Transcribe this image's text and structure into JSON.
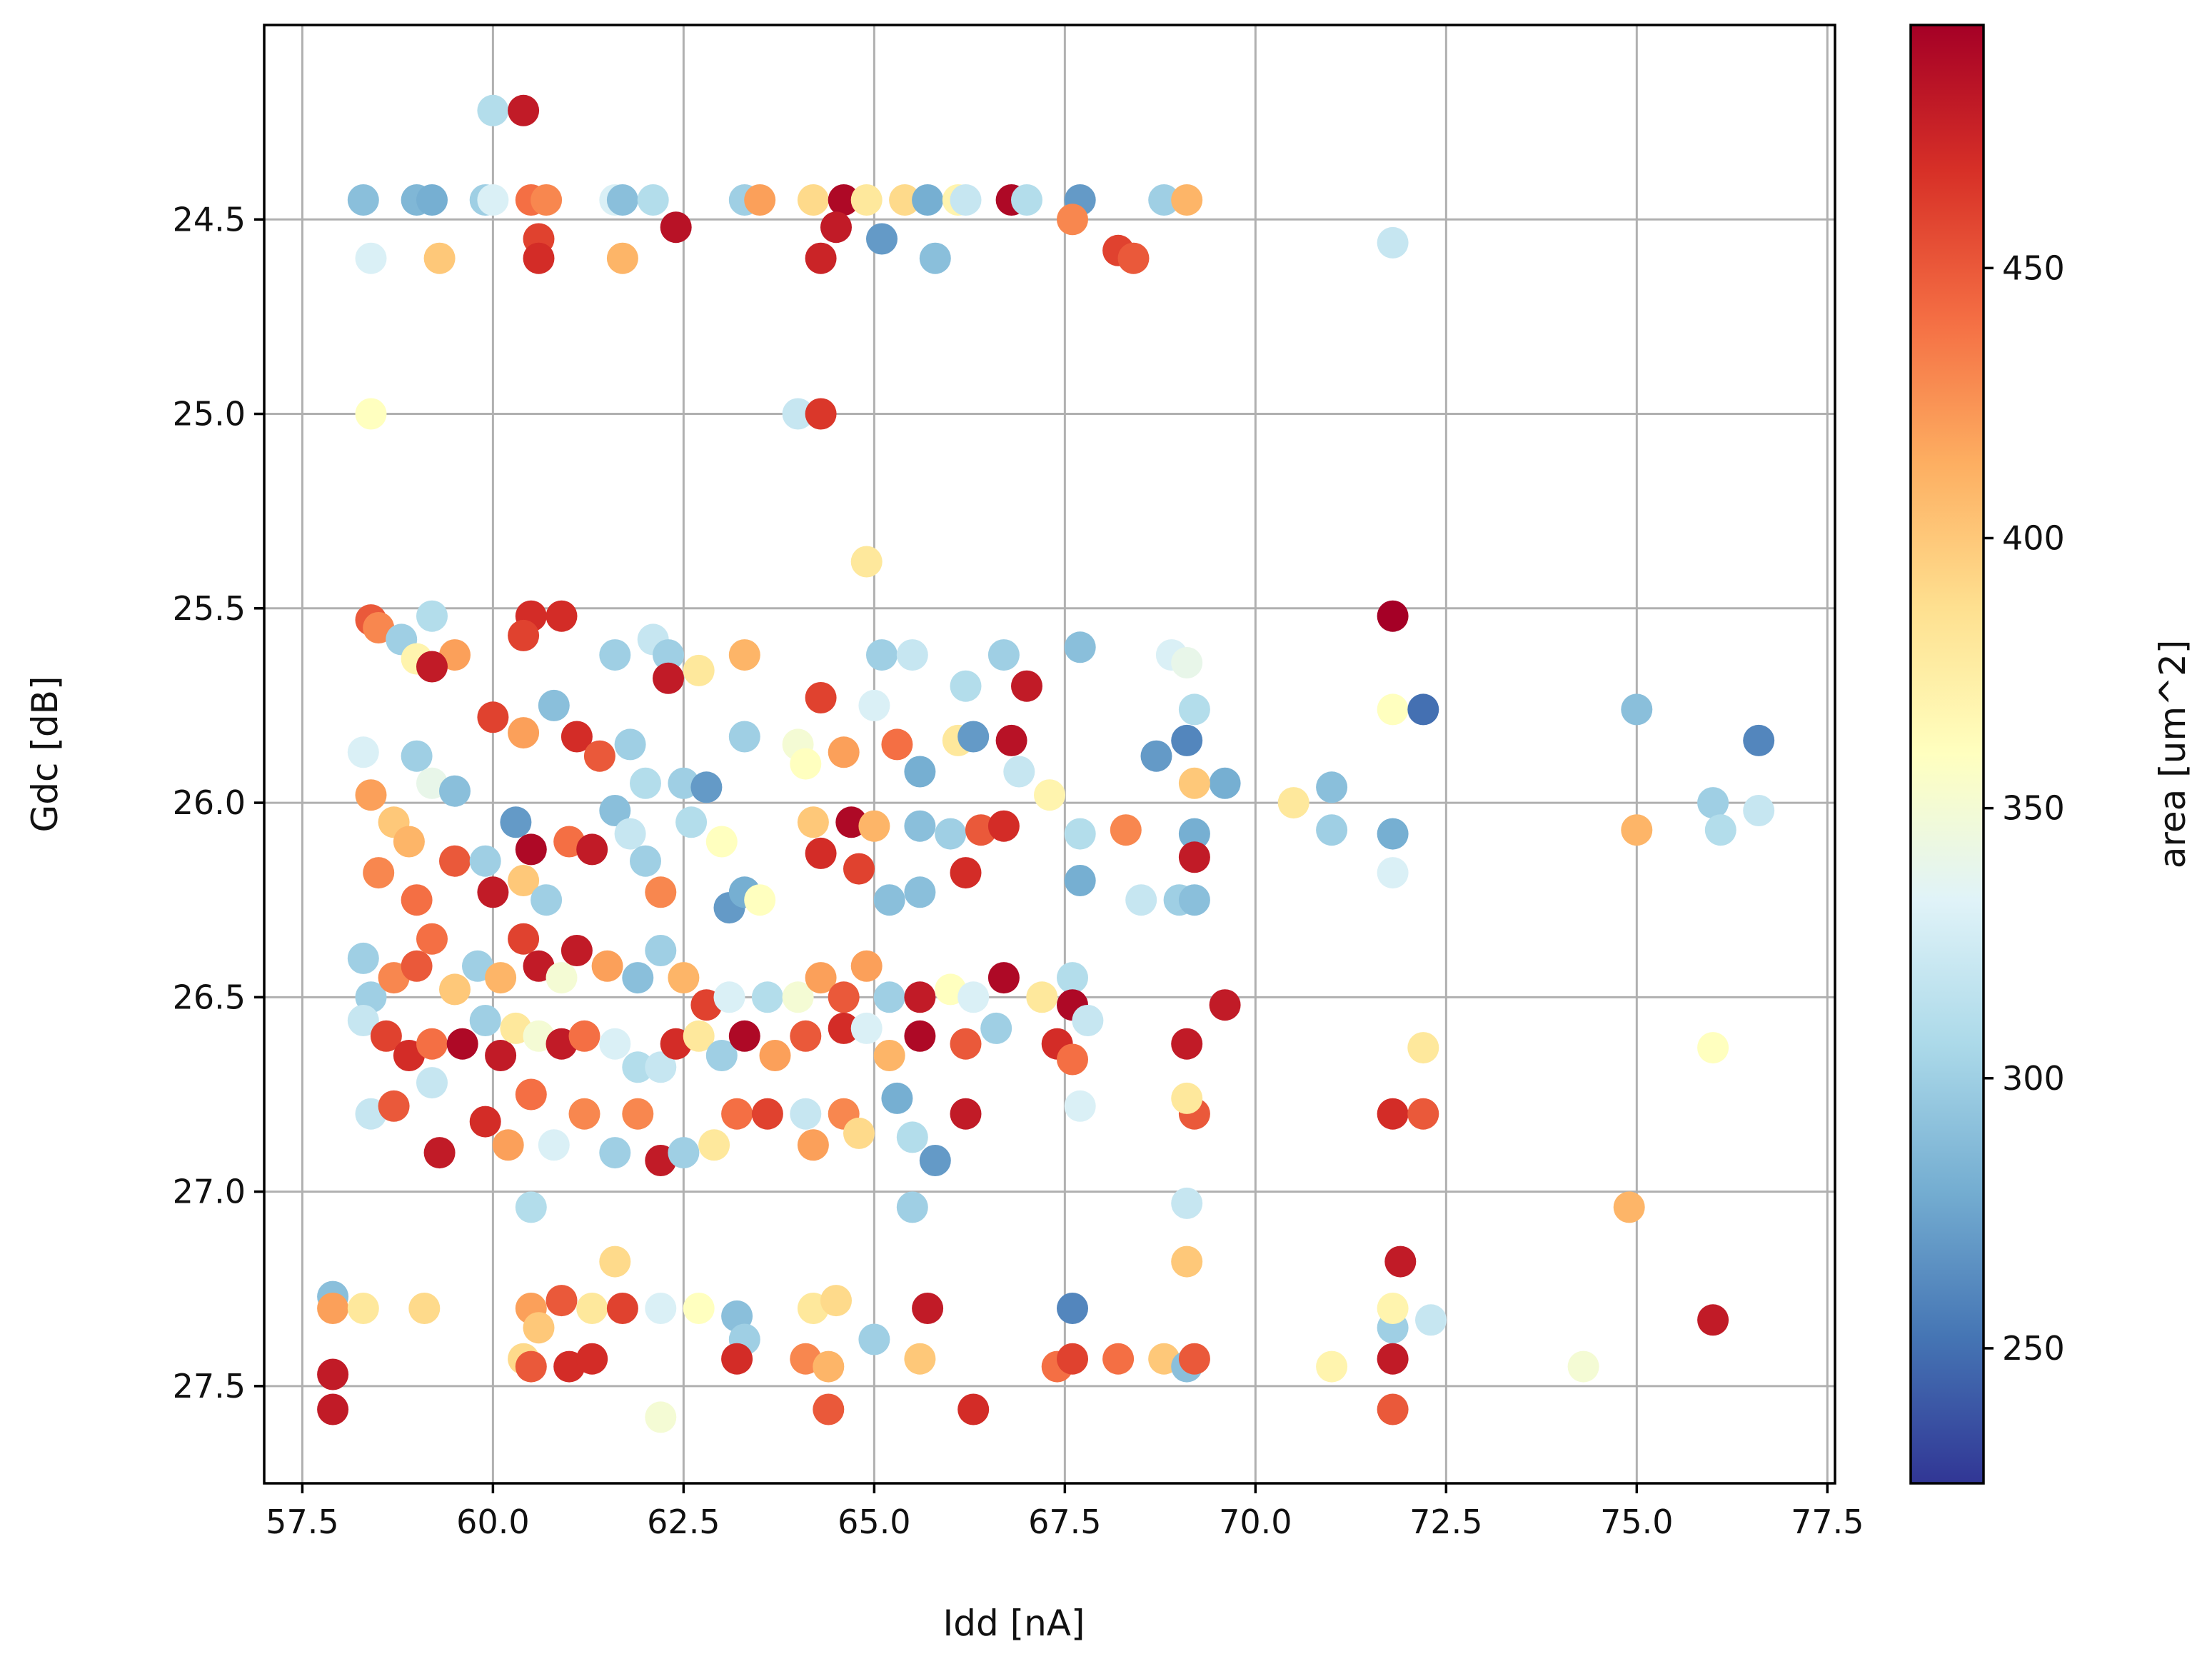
{
  "chart_data": {
    "type": "scatter",
    "title": "",
    "xlabel": "Idd [nA]",
    "ylabel": "Gdc [dB]",
    "colorbar_label": "area [um^2]",
    "colormap": "RdYlBu_r",
    "xlim": [
      57.0,
      77.6
    ],
    "ylim": [
      27.75,
      24.0
    ],
    "y_inverted": true,
    "grid": true,
    "x_ticks": [
      "57.5",
      "60.0",
      "62.5",
      "65.0",
      "67.5",
      "70.0",
      "72.5",
      "75.0",
      "77.5"
    ],
    "y_ticks": [
      "24.5",
      "25.0",
      "25.5",
      "26.0",
      "26.5",
      "27.0",
      "27.5"
    ],
    "colorbar_range": [
      225,
      495
    ],
    "colorbar_ticks": [
      "250",
      "300",
      "350",
      "400",
      "450"
    ],
    "colors": {
      "stops": [
        "#313695",
        "#4575b4",
        "#74add1",
        "#abd9e9",
        "#e0f3f8",
        "#ffffbf",
        "#fee090",
        "#fdae61",
        "#f46d43",
        "#d73027",
        "#a50026"
      ]
    },
    "points": [
      [
        60.0,
        24.22,
        310
      ],
      [
        60.4,
        24.22,
        480
      ],
      [
        58.3,
        24.45,
        290
      ],
      [
        59.0,
        24.45,
        285
      ],
      [
        59.2,
        24.45,
        280
      ],
      [
        59.9,
        24.45,
        300
      ],
      [
        60.0,
        24.45,
        330
      ],
      [
        60.5,
        24.45,
        440
      ],
      [
        60.7,
        24.45,
        430
      ],
      [
        61.6,
        24.45,
        330
      ],
      [
        61.7,
        24.45,
        290
      ],
      [
        62.1,
        24.45,
        310
      ],
      [
        62.4,
        24.52,
        485
      ],
      [
        63.3,
        24.45,
        300
      ],
      [
        63.5,
        24.45,
        420
      ],
      [
        64.2,
        24.45,
        390
      ],
      [
        64.6,
        24.45,
        490
      ],
      [
        64.5,
        24.52,
        480
      ],
      [
        64.9,
        24.45,
        380
      ],
      [
        65.4,
        24.45,
        390
      ],
      [
        65.7,
        24.45,
        280
      ],
      [
        66.1,
        24.45,
        370
      ],
      [
        66.2,
        24.45,
        320
      ],
      [
        66.8,
        24.45,
        490
      ],
      [
        67.0,
        24.45,
        310
      ],
      [
        67.7,
        24.45,
        270
      ],
      [
        67.6,
        24.5,
        430
      ],
      [
        68.8,
        24.45,
        300
      ],
      [
        69.1,
        24.45,
        410
      ],
      [
        58.4,
        24.6,
        330
      ],
      [
        59.3,
        24.6,
        400
      ],
      [
        60.6,
        24.55,
        460
      ],
      [
        60.6,
        24.6,
        470
      ],
      [
        61.7,
        24.6,
        410
      ],
      [
        64.3,
        24.6,
        475
      ],
      [
        65.1,
        24.55,
        270
      ],
      [
        65.8,
        24.6,
        290
      ],
      [
        68.2,
        24.58,
        460
      ],
      [
        68.4,
        24.6,
        450
      ],
      [
        71.8,
        24.56,
        320
      ],
      [
        58.4,
        25.0,
        360
      ],
      [
        64.0,
        25.0,
        320
      ],
      [
        64.3,
        25.0,
        465
      ],
      [
        64.9,
        25.38,
        380
      ],
      [
        58.4,
        25.53,
        450
      ],
      [
        58.5,
        25.55,
        430
      ],
      [
        58.8,
        25.58,
        300
      ],
      [
        59.0,
        25.63,
        370
      ],
      [
        59.2,
        25.52,
        310
      ],
      [
        59.5,
        25.62,
        420
      ],
      [
        59.2,
        25.65,
        480
      ],
      [
        60.5,
        25.52,
        470
      ],
      [
        60.4,
        25.57,
        460
      ],
      [
        60.9,
        25.52,
        470
      ],
      [
        61.6,
        25.62,
        300
      ],
      [
        62.1,
        25.58,
        320
      ],
      [
        62.3,
        25.62,
        300
      ],
      [
        62.3,
        25.68,
        480
      ],
      [
        62.7,
        25.66,
        380
      ],
      [
        63.3,
        25.62,
        410
      ],
      [
        65.1,
        25.62,
        300
      ],
      [
        65.5,
        25.62,
        320
      ],
      [
        66.2,
        25.7,
        310
      ],
      [
        66.7,
        25.62,
        300
      ],
      [
        67.7,
        25.6,
        290
      ],
      [
        67.0,
        25.7,
        480
      ],
      [
        68.9,
        25.62,
        330
      ],
      [
        69.1,
        25.64,
        340
      ],
      [
        71.8,
        25.52,
        495
      ],
      [
        58.3,
        25.87,
        330
      ],
      [
        59.0,
        25.88,
        300
      ],
      [
        59.2,
        25.95,
        340
      ],
      [
        59.5,
        25.97,
        290
      ],
      [
        60.0,
        25.78,
        460
      ],
      [
        60.4,
        25.82,
        420
      ],
      [
        60.8,
        25.75,
        290
      ],
      [
        61.1,
        25.83,
        470
      ],
      [
        61.4,
        25.88,
        450
      ],
      [
        61.8,
        25.85,
        300
      ],
      [
        62.0,
        25.95,
        310
      ],
      [
        62.5,
        25.95,
        300
      ],
      [
        62.8,
        25.96,
        270
      ],
      [
        63.3,
        25.83,
        300
      ],
      [
        64.0,
        25.85,
        350
      ],
      [
        64.1,
        25.9,
        360
      ],
      [
        64.3,
        25.73,
        460
      ],
      [
        64.6,
        25.87,
        420
      ],
      [
        65.0,
        25.75,
        330
      ],
      [
        65.3,
        25.85,
        440
      ],
      [
        65.6,
        25.92,
        280
      ],
      [
        66.1,
        25.84,
        380
      ],
      [
        66.3,
        25.83,
        270
      ],
      [
        66.8,
        25.84,
        485
      ],
      [
        66.9,
        25.92,
        320
      ],
      [
        67.3,
        25.98,
        370
      ],
      [
        68.7,
        25.88,
        270
      ],
      [
        69.1,
        25.84,
        260
      ],
      [
        69.2,
        25.76,
        310
      ],
      [
        69.6,
        25.95,
        280
      ],
      [
        69.2,
        25.95,
        400
      ],
      [
        70.5,
        26.0,
        380
      ],
      [
        71.0,
        25.96,
        290
      ],
      [
        71.8,
        25.76,
        360
      ],
      [
        72.2,
        25.76,
        250
      ],
      [
        75.0,
        25.76,
        290
      ],
      [
        76.0,
        26.0,
        300
      ],
      [
        76.6,
        25.84,
        260
      ],
      [
        76.6,
        26.02,
        320
      ],
      [
        58.4,
        25.98,
        420
      ],
      [
        58.7,
        26.05,
        400
      ],
      [
        58.9,
        26.1,
        410
      ],
      [
        58.5,
        26.18,
        430
      ],
      [
        59.0,
        26.25,
        440
      ],
      [
        59.5,
        26.15,
        450
      ],
      [
        59.9,
        26.15,
        300
      ],
      [
        60.0,
        26.23,
        480
      ],
      [
        60.3,
        26.05,
        270
      ],
      [
        60.5,
        26.12,
        490
      ],
      [
        60.4,
        26.2,
        400
      ],
      [
        60.7,
        26.25,
        300
      ],
      [
        61.0,
        26.1,
        440
      ],
      [
        61.3,
        26.12,
        480
      ],
      [
        61.6,
        26.02,
        290
      ],
      [
        61.8,
        26.08,
        320
      ],
      [
        62.0,
        26.15,
        300
      ],
      [
        62.2,
        26.23,
        430
      ],
      [
        62.6,
        26.05,
        310
      ],
      [
        63.0,
        26.1,
        360
      ],
      [
        63.1,
        26.27,
        270
      ],
      [
        63.3,
        26.23,
        280
      ],
      [
        63.5,
        26.25,
        360
      ],
      [
        64.2,
        26.05,
        400
      ],
      [
        64.3,
        26.13,
        470
      ],
      [
        64.7,
        26.05,
        490
      ],
      [
        64.8,
        26.17,
        460
      ],
      [
        65.0,
        26.06,
        410
      ],
      [
        65.2,
        26.25,
        290
      ],
      [
        65.6,
        26.06,
        290
      ],
      [
        65.6,
        26.23,
        290
      ],
      [
        66.0,
        26.08,
        300
      ],
      [
        66.2,
        26.18,
        470
      ],
      [
        66.4,
        26.07,
        450
      ],
      [
        66.7,
        26.06,
        470
      ],
      [
        67.7,
        26.08,
        310
      ],
      [
        67.7,
        26.2,
        280
      ],
      [
        68.3,
        26.07,
        430
      ],
      [
        68.5,
        26.25,
        320
      ],
      [
        69.0,
        26.25,
        300
      ],
      [
        69.2,
        26.08,
        280
      ],
      [
        69.2,
        26.14,
        480
      ],
      [
        69.2,
        26.25,
        290
      ],
      [
        71.0,
        26.07,
        300
      ],
      [
        71.8,
        26.08,
        280
      ],
      [
        71.8,
        26.18,
        330
      ],
      [
        75.0,
        26.07,
        410
      ],
      [
        76.1,
        26.07,
        310
      ],
      [
        58.3,
        26.4,
        300
      ],
      [
        58.4,
        26.5,
        300
      ],
      [
        58.7,
        26.45,
        430
      ],
      [
        59.0,
        26.42,
        450
      ],
      [
        59.2,
        26.35,
        440
      ],
      [
        59.5,
        26.48,
        400
      ],
      [
        59.8,
        26.42,
        300
      ],
      [
        60.1,
        26.45,
        410
      ],
      [
        60.4,
        26.35,
        460
      ],
      [
        60.6,
        26.42,
        480
      ],
      [
        60.9,
        26.45,
        350
      ],
      [
        61.1,
        26.38,
        480
      ],
      [
        61.5,
        26.42,
        420
      ],
      [
        61.9,
        26.45,
        290
      ],
      [
        62.2,
        26.38,
        300
      ],
      [
        62.5,
        26.45,
        410
      ],
      [
        62.8,
        26.52,
        460
      ],
      [
        63.1,
        26.5,
        330
      ],
      [
        63.6,
        26.5,
        310
      ],
      [
        64.0,
        26.5,
        350
      ],
      [
        64.3,
        26.45,
        420
      ],
      [
        64.6,
        26.5,
        450
      ],
      [
        64.9,
        26.42,
        420
      ],
      [
        65.2,
        26.5,
        300
      ],
      [
        65.6,
        26.5,
        480
      ],
      [
        66.0,
        26.48,
        360
      ],
      [
        66.3,
        26.5,
        330
      ],
      [
        66.7,
        26.45,
        490
      ],
      [
        67.2,
        26.5,
        380
      ],
      [
        67.6,
        26.45,
        310
      ],
      [
        67.6,
        26.52,
        490
      ],
      [
        67.8,
        26.56,
        320
      ],
      [
        69.6,
        26.52,
        480
      ],
      [
        58.3,
        26.56,
        320
      ],
      [
        58.6,
        26.6,
        460
      ],
      [
        58.9,
        26.65,
        470
      ],
      [
        59.2,
        26.62,
        440
      ],
      [
        59.6,
        26.62,
        490
      ],
      [
        59.9,
        26.56,
        300
      ],
      [
        60.1,
        26.65,
        480
      ],
      [
        60.3,
        26.58,
        380
      ],
      [
        60.6,
        26.6,
        350
      ],
      [
        60.9,
        26.62,
        480
      ],
      [
        61.2,
        26.6,
        440
      ],
      [
        61.6,
        26.62,
        330
      ],
      [
        61.9,
        26.68,
        310
      ],
      [
        62.2,
        26.68,
        320
      ],
      [
        62.4,
        26.62,
        470
      ],
      [
        62.7,
        26.6,
        380
      ],
      [
        63.0,
        26.65,
        300
      ],
      [
        63.3,
        26.6,
        490
      ],
      [
        63.7,
        26.65,
        420
      ],
      [
        64.1,
        26.6,
        450
      ],
      [
        64.6,
        26.58,
        470
      ],
      [
        64.9,
        26.58,
        330
      ],
      [
        65.2,
        26.65,
        410
      ],
      [
        65.6,
        26.6,
        490
      ],
      [
        66.2,
        26.62,
        450
      ],
      [
        66.6,
        26.58,
        300
      ],
      [
        67.4,
        26.62,
        470
      ],
      [
        67.6,
        26.66,
        440
      ],
      [
        69.1,
        26.62,
        480
      ],
      [
        72.2,
        26.63,
        380
      ],
      [
        76.0,
        26.63,
        360
      ],
      [
        58.4,
        26.8,
        320
      ],
      [
        58.7,
        26.78,
        450
      ],
      [
        59.2,
        26.72,
        320
      ],
      [
        59.3,
        26.9,
        480
      ],
      [
        59.9,
        26.82,
        470
      ],
      [
        60.2,
        26.88,
        420
      ],
      [
        60.5,
        26.75,
        440
      ],
      [
        60.8,
        26.88,
        330
      ],
      [
        61.2,
        26.8,
        430
      ],
      [
        61.6,
        26.9,
        300
      ],
      [
        61.9,
        26.8,
        430
      ],
      [
        62.2,
        26.92,
        480
      ],
      [
        62.5,
        26.9,
        300
      ],
      [
        62.9,
        26.88,
        380
      ],
      [
        63.2,
        26.8,
        440
      ],
      [
        63.6,
        26.8,
        460
      ],
      [
        64.1,
        26.8,
        320
      ],
      [
        64.2,
        26.88,
        420
      ],
      [
        64.6,
        26.8,
        430
      ],
      [
        64.8,
        26.85,
        390
      ],
      [
        65.3,
        26.76,
        280
      ],
      [
        65.5,
        26.86,
        310
      ],
      [
        65.8,
        26.92,
        270
      ],
      [
        66.2,
        26.8,
        480
      ],
      [
        67.7,
        26.78,
        330
      ],
      [
        69.2,
        26.8,
        450
      ],
      [
        69.1,
        26.76,
        380
      ],
      [
        71.8,
        26.8,
        470
      ],
      [
        72.2,
        26.8,
        450
      ],
      [
        60.5,
        27.04,
        310
      ],
      [
        65.5,
        27.04,
        300
      ],
      [
        69.1,
        27.03,
        320
      ],
      [
        74.9,
        27.04,
        410
      ],
      [
        57.9,
        27.27,
        290
      ],
      [
        57.9,
        27.3,
        420
      ],
      [
        58.3,
        27.3,
        380
      ],
      [
        59.1,
        27.3,
        390
      ],
      [
        60.5,
        27.3,
        420
      ],
      [
        60.6,
        27.35,
        400
      ],
      [
        60.9,
        27.28,
        450
      ],
      [
        61.3,
        27.3,
        380
      ],
      [
        61.6,
        27.18,
        390
      ],
      [
        61.7,
        27.3,
        460
      ],
      [
        62.2,
        27.3,
        330
      ],
      [
        62.7,
        27.3,
        360
      ],
      [
        63.2,
        27.32,
        290
      ],
      [
        63.3,
        27.38,
        300
      ],
      [
        64.2,
        27.3,
        380
      ],
      [
        64.5,
        27.28,
        390
      ],
      [
        65.0,
        27.38,
        300
      ],
      [
        65.7,
        27.3,
        480
      ],
      [
        67.6,
        27.3,
        260
      ],
      [
        69.1,
        27.18,
        400
      ],
      [
        71.8,
        27.35,
        300
      ],
      [
        71.8,
        27.3,
        370
      ],
      [
        71.9,
        27.18,
        480
      ],
      [
        72.3,
        27.33,
        320
      ],
      [
        76.0,
        27.33,
        480
      ],
      [
        57.9,
        27.47,
        480
      ],
      [
        57.9,
        27.56,
        480
      ],
      [
        60.4,
        27.43,
        390
      ],
      [
        60.5,
        27.45,
        450
      ],
      [
        61.0,
        27.45,
        470
      ],
      [
        61.3,
        27.43,
        470
      ],
      [
        62.2,
        27.58,
        350
      ],
      [
        63.2,
        27.43,
        470
      ],
      [
        64.1,
        27.43,
        430
      ],
      [
        64.4,
        27.45,
        410
      ],
      [
        64.4,
        27.56,
        450
      ],
      [
        65.6,
        27.43,
        400
      ],
      [
        66.3,
        27.56,
        470
      ],
      [
        67.4,
        27.45,
        440
      ],
      [
        67.6,
        27.43,
        460
      ],
      [
        68.2,
        27.43,
        440
      ],
      [
        68.8,
        27.43,
        400
      ],
      [
        69.1,
        27.45,
        290
      ],
      [
        69.2,
        27.43,
        450
      ],
      [
        71.0,
        27.45,
        370
      ],
      [
        71.8,
        27.43,
        480
      ],
      [
        71.8,
        27.56,
        450
      ],
      [
        74.3,
        27.45,
        350
      ]
    ]
  }
}
